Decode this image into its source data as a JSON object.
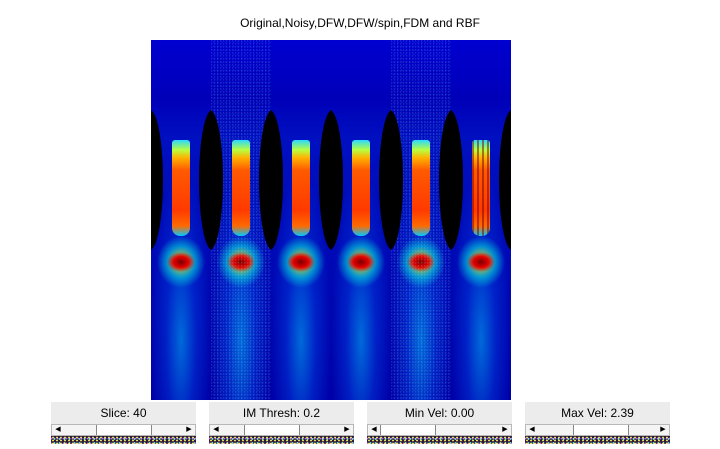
{
  "figure": {
    "title": "Original,Noisy,DFW,DFW/spin,FDM and RBF"
  },
  "panels": [
    {
      "style": "original"
    },
    {
      "style": "noisy"
    },
    {
      "style": "smooth"
    },
    {
      "style": "smooth"
    },
    {
      "style": "noisy"
    },
    {
      "style": "rbf"
    }
  ],
  "controls": {
    "slice": {
      "label": "Slice: 40",
      "position": 0.5
    },
    "im_thresh": {
      "label": "IM Thresh: 0.2",
      "position": 0.35
    },
    "min_vel": {
      "label": "Min Vel: 0.00",
      "position": 0.0
    },
    "max_vel": {
      "label": "Max Vel: 2.39",
      "position": 0.55
    }
  },
  "colors": {
    "colormap": "jet",
    "background": "#ffffff",
    "label_background": "#ececec"
  }
}
